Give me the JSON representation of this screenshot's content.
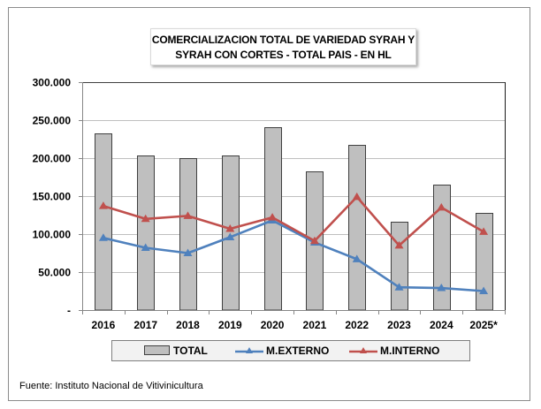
{
  "chart_data": {
    "type": "bar",
    "title": "COMERCIALIZACION TOTAL DE VARIEDAD SYRAH Y SYRAH CON CORTES - TOTAL PAIS - EN HL",
    "title_lines": [
      "COMERCIALIZACION TOTAL DE VARIEDAD SYRAH Y",
      "SYRAH CON CORTES - TOTAL PAIS - EN HL"
    ],
    "xlabel": "",
    "ylabel": "",
    "categories": [
      "2016",
      "2017",
      "2018",
      "2019",
      "2020",
      "2021",
      "2022",
      "2023",
      "2024",
      "2025*"
    ],
    "ylim": [
      0,
      300000
    ],
    "yticks": [
      0,
      50000,
      100000,
      150000,
      200000,
      250000,
      300000
    ],
    "ytick_labels": [
      "-",
      "50.000",
      "100.000",
      "150.000",
      "200.000",
      "250.000",
      "300.000"
    ],
    "grid": true,
    "legend_position": "bottom",
    "series": [
      {
        "name": "TOTAL",
        "type": "bar",
        "color": "#bfbfbf",
        "values": [
          233000,
          203000,
          200000,
          204000,
          241000,
          182000,
          217000,
          116000,
          165000,
          128000
        ]
      },
      {
        "name": "M.EXTERNO",
        "type": "line",
        "color": "#4f81bd",
        "marker": "triangle",
        "values": [
          95000,
          82000,
          75000,
          96000,
          118000,
          89000,
          67000,
          30000,
          29000,
          25000
        ]
      },
      {
        "name": "M.INTERNO",
        "type": "line",
        "color": "#c0504d",
        "marker": "triangle",
        "values": [
          137000,
          120000,
          124000,
          107000,
          122000,
          91000,
          149000,
          85000,
          135000,
          103000
        ]
      }
    ]
  },
  "source": "Fuente:  Instituto Nacional de Vitivinicultura"
}
